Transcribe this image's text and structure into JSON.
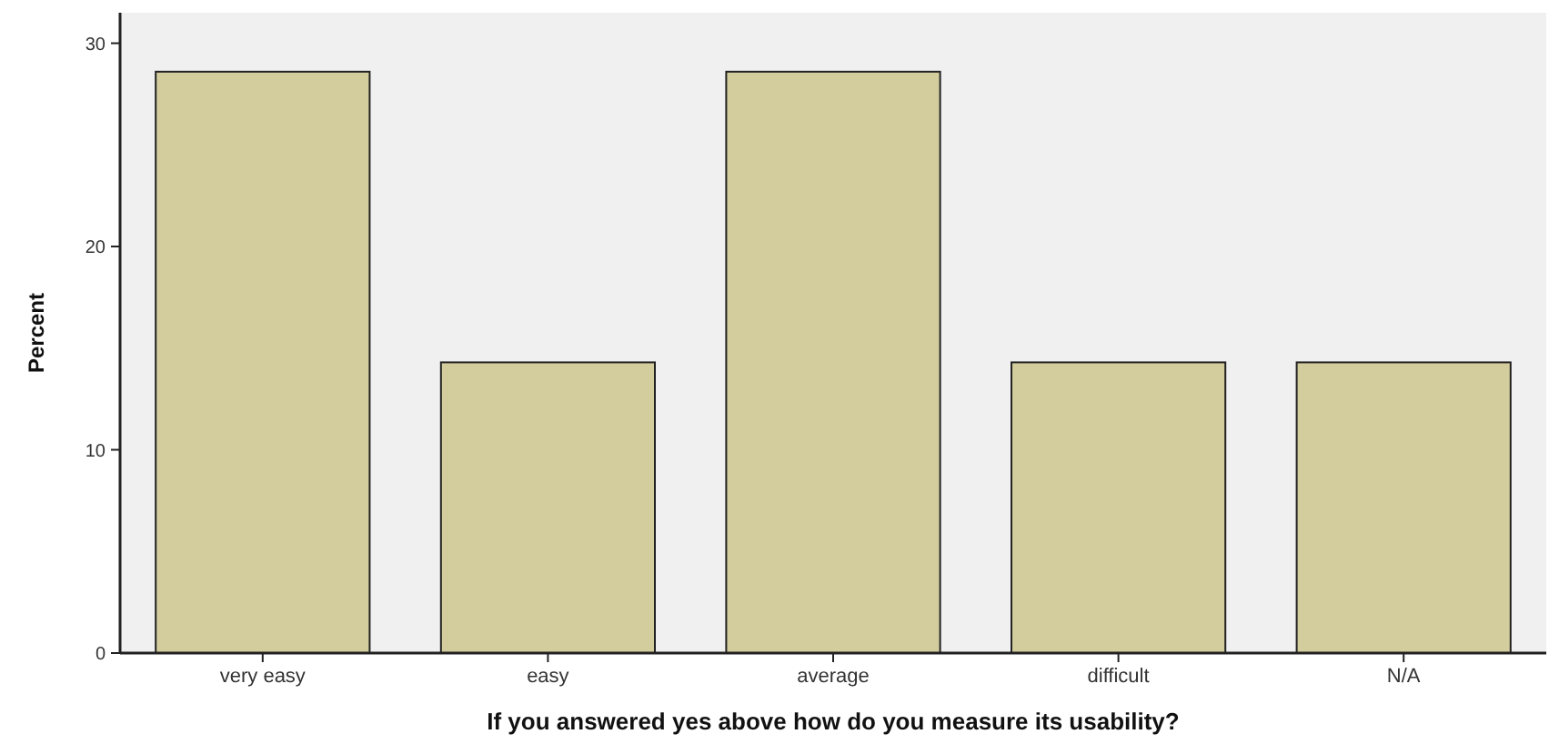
{
  "chart_data": {
    "type": "bar",
    "xlabel": "If you answered yes above how do you measure its usability?",
    "ylabel": "Percent",
    "categories": [
      "very easy",
      "easy",
      "average",
      "difficult",
      "N/A"
    ],
    "values": [
      28.6,
      14.3,
      28.6,
      14.3,
      14.3
    ],
    "color": "#d3cd9d",
    "ylim": [
      0,
      31.5
    ],
    "yticks": [
      0,
      10,
      20,
      30
    ],
    "grid": false
  }
}
